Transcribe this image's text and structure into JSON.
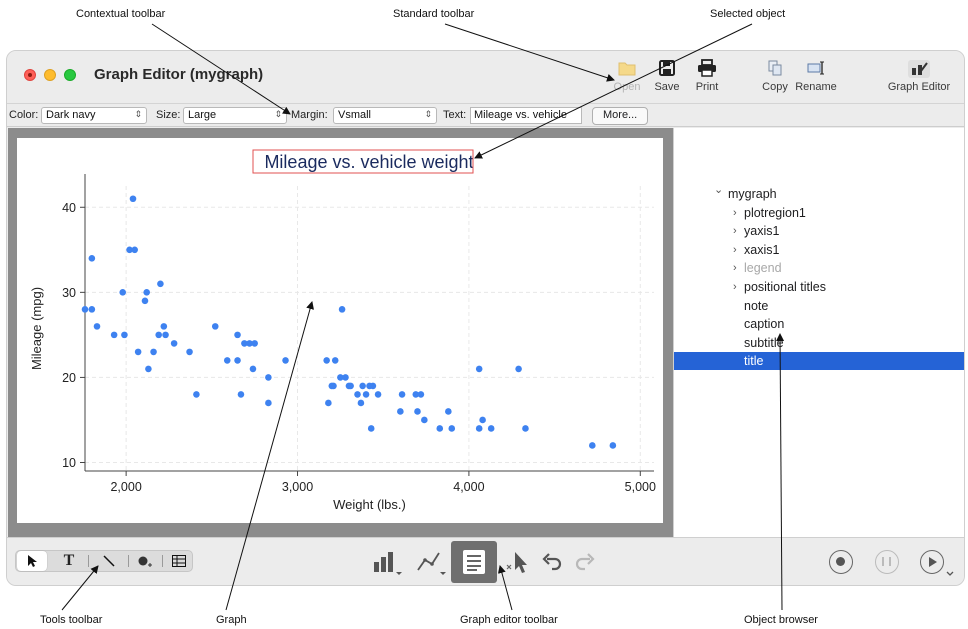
{
  "callouts": {
    "contextual_toolbar": "Contextual toolbar",
    "standard_toolbar": "Standard toolbar",
    "selected_object": "Selected object",
    "tools_toolbar": "Tools toolbar",
    "graph": "Graph",
    "graph_editor_toolbar": "Graph editor toolbar",
    "object_browser": "Object browser"
  },
  "window": {
    "title": "Graph Editor (mygraph)"
  },
  "standard_toolbar": {
    "open": "Open",
    "save": "Save",
    "print": "Print",
    "copy": "Copy",
    "rename": "Rename",
    "graph_editor": "Graph Editor"
  },
  "contextual_toolbar": {
    "color_label": "Color:",
    "color_value": "Dark navy",
    "size_label": "Size:",
    "size_value": "Large",
    "margin_label": "Margin:",
    "margin_value": "Vsmall",
    "text_label": "Text:",
    "text_value": "Mileage vs. vehicle",
    "more_button": "More..."
  },
  "object_browser": {
    "items": [
      {
        "label": "mygraph",
        "expander": "open"
      },
      {
        "label": "plotregion1",
        "expander": "closed"
      },
      {
        "label": "yaxis1",
        "expander": "closed"
      },
      {
        "label": "xaxis1",
        "expander": "closed"
      },
      {
        "label": "legend",
        "expander": "closed",
        "disabled": true
      },
      {
        "label": "positional titles",
        "expander": "closed"
      },
      {
        "label": "note"
      },
      {
        "label": "caption"
      },
      {
        "label": "subtitle"
      },
      {
        "label": "title",
        "selected": true
      }
    ]
  },
  "colors": {
    "marker": "#3e82f0",
    "selection": "#2563d6",
    "title_text": "#1a2a5e",
    "selection_box": "#e25050"
  },
  "chart_data": {
    "type": "scatter",
    "title": "Mileage vs. vehicle weight",
    "xlabel": "Weight (lbs.)",
    "ylabel": "Mileage (mpg)",
    "xlim": [
      1760,
      5080
    ],
    "ylim": [
      9,
      42.5
    ],
    "xticks": [
      {
        "v": 2000,
        "label": "2,000"
      },
      {
        "v": 3000,
        "label": "3,000"
      },
      {
        "v": 4000,
        "label": "4,000"
      },
      {
        "v": 5000,
        "label": "5,000"
      }
    ],
    "yticks": [
      {
        "v": 10,
        "label": "10"
      },
      {
        "v": 20,
        "label": "20"
      },
      {
        "v": 30,
        "label": "30"
      },
      {
        "v": 40,
        "label": "40"
      }
    ],
    "grid": true,
    "points": [
      [
        1760,
        28
      ],
      [
        1800,
        28
      ],
      [
        1800,
        34
      ],
      [
        1830,
        26
      ],
      [
        1930,
        25
      ],
      [
        1980,
        30
      ],
      [
        1990,
        25
      ],
      [
        2020,
        35
      ],
      [
        2040,
        41
      ],
      [
        2050,
        35
      ],
      [
        2070,
        23
      ],
      [
        2110,
        29
      ],
      [
        2120,
        30
      ],
      [
        2130,
        21
      ],
      [
        2160,
        23
      ],
      [
        2190,
        25
      ],
      [
        2200,
        31
      ],
      [
        2220,
        26
      ],
      [
        2230,
        25
      ],
      [
        2280,
        24
      ],
      [
        2370,
        23
      ],
      [
        2410,
        18
      ],
      [
        2520,
        26
      ],
      [
        2590,
        22
      ],
      [
        2650,
        25
      ],
      [
        2650,
        22
      ],
      [
        2670,
        18
      ],
      [
        2690,
        24
      ],
      [
        2720,
        24
      ],
      [
        2740,
        21
      ],
      [
        2750,
        24
      ],
      [
        2830,
        20
      ],
      [
        2830,
        17
      ],
      [
        2930,
        22
      ],
      [
        3170,
        22
      ],
      [
        3180,
        17
      ],
      [
        3200,
        19
      ],
      [
        3210,
        19
      ],
      [
        3220,
        22
      ],
      [
        3250,
        20
      ],
      [
        3260,
        28
      ],
      [
        3280,
        20
      ],
      [
        3300,
        19
      ],
      [
        3310,
        19
      ],
      [
        3350,
        18
      ],
      [
        3370,
        17
      ],
      [
        3380,
        19
      ],
      [
        3400,
        18
      ],
      [
        3420,
        19
      ],
      [
        3430,
        14
      ],
      [
        3440,
        19
      ],
      [
        3470,
        18
      ],
      [
        3600,
        16
      ],
      [
        3610,
        18
      ],
      [
        3690,
        18
      ],
      [
        3700,
        16
      ],
      [
        3720,
        18
      ],
      [
        3740,
        15
      ],
      [
        3830,
        14
      ],
      [
        3880,
        16
      ],
      [
        3900,
        14
      ],
      [
        4060,
        21
      ],
      [
        4060,
        14
      ],
      [
        4080,
        15
      ],
      [
        4130,
        14
      ],
      [
        4290,
        21
      ],
      [
        4330,
        14
      ],
      [
        4720,
        12
      ],
      [
        4840,
        12
      ]
    ]
  }
}
